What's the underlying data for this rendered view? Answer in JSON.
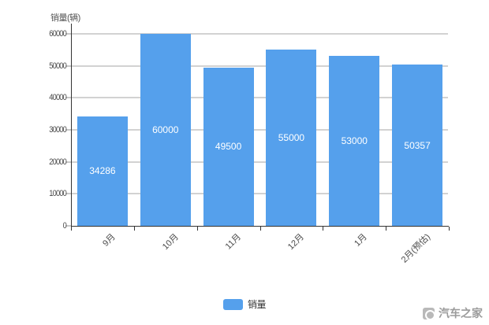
{
  "chart_data": {
    "type": "bar",
    "title": "销量(辆)",
    "categories": [
      "9月",
      "10月",
      "11月",
      "12月",
      "1月",
      "2月(预估)"
    ],
    "values": [
      34286,
      60000,
      49500,
      55000,
      53000,
      50357
    ],
    "value_labels": [
      "34286",
      "60000",
      "49500",
      "55000",
      "53000",
      "50357"
    ],
    "series": [
      {
        "name": "销量",
        "values": [
          34286,
          60000,
          49500,
          55000,
          53000,
          50357
        ]
      }
    ],
    "ylim": [
      0,
      60000
    ],
    "yticks": [
      0,
      10000,
      20000,
      30000,
      40000,
      50000,
      60000
    ],
    "ytick_labels": [
      "0",
      "10000",
      "20000",
      "30000",
      "40000",
      "50000",
      "60000"
    ],
    "grid": true,
    "legend_position": "bottom",
    "xlabel": "",
    "ylabel": "销量(辆)"
  },
  "legend": {
    "label": "销量"
  },
  "watermark": {
    "text": "汽车之家"
  },
  "colors": {
    "bar": "#55a0ec",
    "grid": "#d2d2d2",
    "axis": "#333333",
    "tick_label": "#4a4a4a",
    "value_label": "#ffffff",
    "watermark": "#9b9b9b",
    "background": "#ffffff"
  }
}
